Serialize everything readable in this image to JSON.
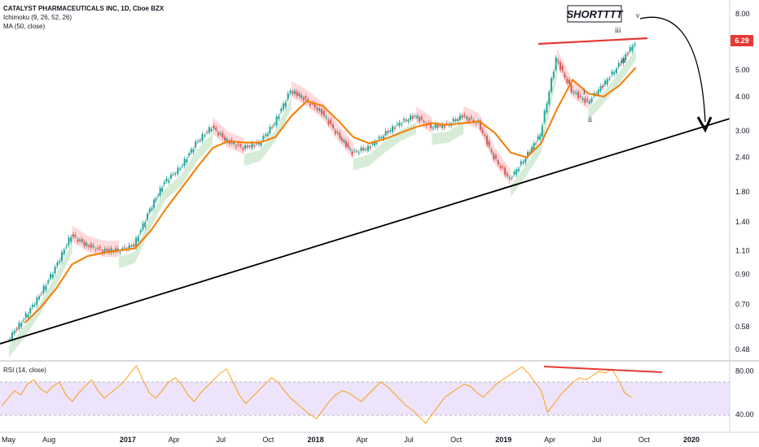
{
  "header": {
    "title": "CATALYST PHARMACEUTICALS INC, 1D, Cboe BZX",
    "ichimoku": "Ichimoku (9, 26, 52, 26)",
    "ma": "MA (50, close)",
    "rsi": "RSI (14, close)"
  },
  "annotation": {
    "short_label": "SHORTTTT"
  },
  "colors": {
    "price_up": "#26a69a",
    "price_down": "#ef5350",
    "ma": "#f57c00",
    "trendline": "#000000",
    "resistance": "#e53935",
    "cloud_bull": "#c8e6c9",
    "cloud_bear": "#ffcdd2",
    "rsi_line": "#ff9800",
    "rsi_band": "#ede3fa",
    "price_tag": "#e53935"
  },
  "chart_data": [
    {
      "type": "line",
      "title": "CATALYST PHARMACEUTICALS INC, 1D, Cboe BZX",
      "scale": "log",
      "ylim": [
        0.46,
        9.0
      ],
      "y_ticks": [
        "8.00",
        "6.29",
        "5.00",
        "4.00",
        "3.00",
        "2.40",
        "1.80",
        "1.40",
        "1.10",
        "0.90",
        "0.70",
        "0.58",
        "0.48"
      ],
      "x_ticks": [
        "May",
        "Aug",
        "2017",
        "Apr",
        "Jul",
        "Oct",
        "2018",
        "Apr",
        "Jul",
        "Oct",
        "2019",
        "Apr",
        "Jul",
        "Oct",
        "2020"
      ],
      "last_price": "6.29",
      "series": [
        {
          "name": "price",
          "x": [
            "2016-05",
            "2016-06",
            "2016-07",
            "2016-08",
            "2016-09",
            "2016-10",
            "2016-11",
            "2016-12",
            "2017-01",
            "2017-02",
            "2017-03",
            "2017-04",
            "2017-05",
            "2017-06",
            "2017-07",
            "2017-08",
            "2017-09",
            "2017-10",
            "2017-11",
            "2017-12",
            "2018-01",
            "2018-02",
            "2018-03",
            "2018-04",
            "2018-05",
            "2018-06",
            "2018-07",
            "2018-08",
            "2018-09",
            "2018-10",
            "2018-11",
            "2018-12",
            "2019-01",
            "2019-02",
            "2019-03",
            "2019-04",
            "2019-05",
            "2019-06",
            "2019-07",
            "2019-08",
            "2019-09"
          ],
          "values": [
            0.52,
            0.62,
            0.75,
            0.95,
            1.25,
            1.15,
            1.1,
            1.1,
            1.15,
            1.55,
            1.95,
            2.2,
            2.7,
            3.1,
            2.75,
            2.6,
            2.7,
            3.2,
            4.2,
            3.9,
            3.5,
            2.9,
            2.5,
            2.6,
            2.9,
            3.2,
            3.4,
            3.1,
            3.15,
            3.4,
            3.2,
            2.4,
            2.0,
            2.4,
            2.9,
            5.5,
            4.2,
            3.8,
            4.4,
            5.2,
            6.29
          ]
        },
        {
          "name": "MA (50, close)",
          "x": [
            "2016-06",
            "2016-07",
            "2016-08",
            "2016-09",
            "2016-10",
            "2016-11",
            "2016-12",
            "2017-01",
            "2017-02",
            "2017-03",
            "2017-04",
            "2017-05",
            "2017-06",
            "2017-07",
            "2017-08",
            "2017-09",
            "2017-10",
            "2017-11",
            "2017-12",
            "2018-01",
            "2018-02",
            "2018-03",
            "2018-04",
            "2018-05",
            "2018-06",
            "2018-07",
            "2018-08",
            "2018-09",
            "2018-10",
            "2018-11",
            "2018-12",
            "2019-01",
            "2019-02",
            "2019-03",
            "2019-04",
            "2019-05",
            "2019-06",
            "2019-07",
            "2019-08",
            "2019-09"
          ],
          "values": [
            0.6,
            0.68,
            0.8,
            0.98,
            1.05,
            1.08,
            1.1,
            1.12,
            1.3,
            1.55,
            1.85,
            2.2,
            2.6,
            2.75,
            2.72,
            2.72,
            2.85,
            3.4,
            3.85,
            3.7,
            3.25,
            2.85,
            2.7,
            2.8,
            2.95,
            3.1,
            3.2,
            3.15,
            3.2,
            3.25,
            2.95,
            2.5,
            2.4,
            2.7,
            3.6,
            4.6,
            4.1,
            4.0,
            4.4,
            5.1
          ]
        }
      ],
      "annotations": [
        "SHORTTTT",
        "i",
        "ii",
        "iii",
        "iv",
        "v"
      ]
    },
    {
      "type": "line",
      "title": "RSI (14, close)",
      "ylim": [
        25,
        88
      ],
      "y_ticks": [
        "80.00",
        "40.00"
      ],
      "band": [
        30,
        70
      ],
      "series": [
        {
          "name": "RSI",
          "values": [
            48,
            55,
            62,
            58,
            68,
            72,
            64,
            60,
            66,
            70,
            58,
            52,
            60,
            66,
            72,
            62,
            55,
            60,
            65,
            70,
            78,
            85,
            72,
            60,
            55,
            62,
            70,
            74,
            68,
            58,
            52,
            60,
            66,
            72,
            78,
            82,
            70,
            58,
            50,
            56,
            62,
            68,
            74,
            70,
            62,
            55,
            50,
            45,
            40,
            36,
            44,
            52,
            58,
            62,
            60,
            56,
            52,
            58,
            64,
            70,
            66,
            60,
            54,
            48,
            44,
            38,
            32,
            40,
            48,
            56,
            60,
            64,
            68,
            66,
            60,
            56,
            62,
            68,
            72,
            76,
            80,
            84,
            78,
            70,
            62,
            42,
            50,
            58,
            64,
            70,
            74,
            72,
            76,
            80,
            78,
            82,
            72,
            60,
            56
          ]
        }
      ]
    }
  ]
}
